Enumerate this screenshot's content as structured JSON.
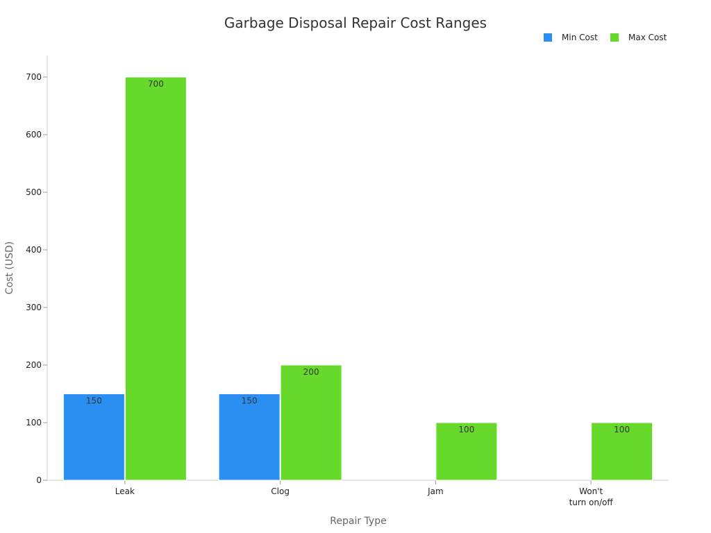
{
  "chart_data": {
    "type": "bar",
    "title": "Garbage Disposal Repair Cost Ranges",
    "xlabel": "Repair Type",
    "ylabel": "Cost (USD)",
    "categories": [
      [
        "Leak"
      ],
      [
        "Clog"
      ],
      [
        "Jam"
      ],
      [
        "Won't",
        "turn on/off"
      ]
    ],
    "series": [
      {
        "name": "Min Cost",
        "color": "#2b8ff2",
        "values": [
          150,
          150,
          0,
          0
        ]
      },
      {
        "name": "Max Cost",
        "color": "#66d92a",
        "values": [
          700,
          200,
          100,
          100
        ]
      }
    ],
    "yticks": [
      0,
      100,
      200,
      300,
      400,
      500,
      600,
      700
    ],
    "ylim": [
      0,
      735
    ],
    "grid": false,
    "legend_position": "top-right"
  }
}
